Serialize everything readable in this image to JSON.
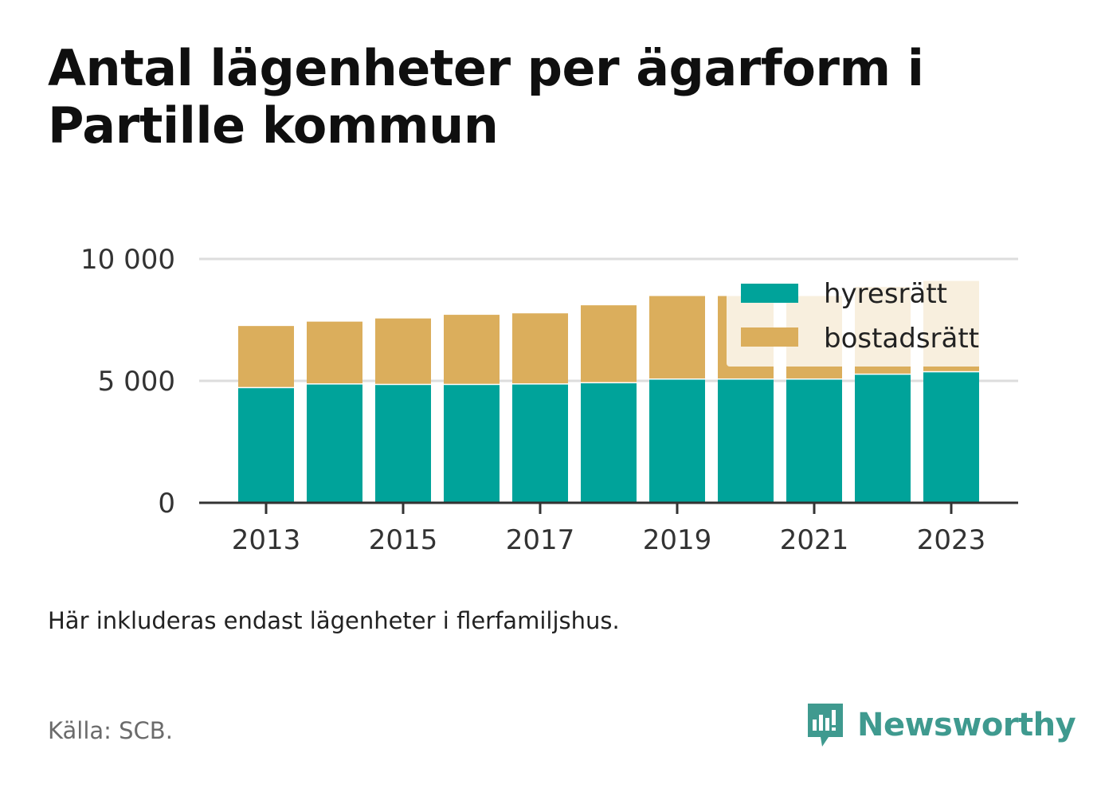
{
  "header": {
    "title": "Antal lägenheter per ägarform i Partille kommun"
  },
  "footer": {
    "note": "Här inkluderas endast lägenheter i flerfamiljshus.",
    "source": "Källa: SCB.",
    "brand": "Newsworthy"
  },
  "colors": {
    "hyresratt": "#00a39a",
    "bostadsratt": "#dbae5c",
    "grid": "#dddddd",
    "axis": "#333333",
    "brand": "#3f9a8f"
  },
  "chart_data": {
    "type": "bar",
    "stacked": true,
    "categories": [
      2013,
      2014,
      2015,
      2016,
      2017,
      2018,
      2019,
      2020,
      2021,
      2022,
      2023
    ],
    "x_tick_labels": [
      "2013",
      "2015",
      "2017",
      "2019",
      "2021",
      "2023"
    ],
    "y_ticks": [
      0,
      5000,
      10000
    ],
    "y_tick_labels": [
      "0",
      "5 000",
      "10 000"
    ],
    "ylim": [
      0,
      10000
    ],
    "grid": true,
    "legend_position": "top-right",
    "series": [
      {
        "name": "hyresrätt",
        "values": [
          4700,
          4850,
          4830,
          4830,
          4850,
          4900,
          5050,
          5050,
          5050,
          5250,
          5350
        ]
      },
      {
        "name": "bostadsrätt",
        "values": [
          2550,
          2580,
          2730,
          2880,
          2920,
          3200,
          3430,
          3430,
          3430,
          3600,
          3750
        ]
      }
    ]
  }
}
